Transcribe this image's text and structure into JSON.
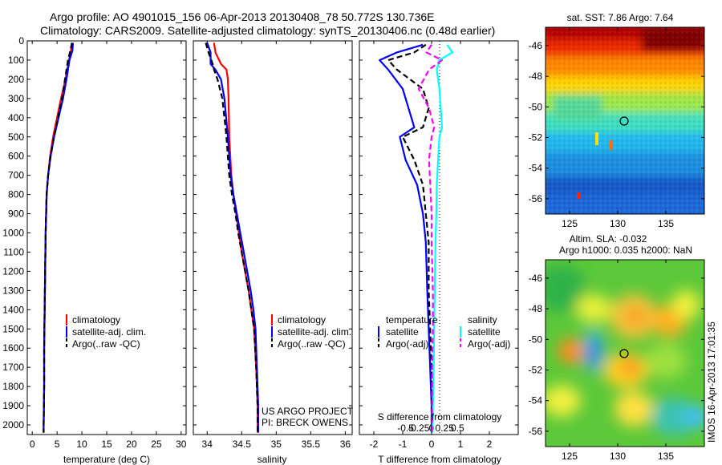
{
  "title": {
    "line1": "Argo profile: AO 4901015_156 06-Apr-2013 20130408_78 50.772S 130.736E",
    "line2": "Climatology: CARS2009. Satellite-adjusted climatology: synTS_20130406.nc (0.48d earlier)"
  },
  "colors": {
    "climatology": "#ff0000",
    "satellite": "#0000ff",
    "argo": "#000000",
    "sal_satellite": "#00ffff",
    "sal_argo": "#ff00ff"
  },
  "panels": {
    "temperature": {
      "xlabel": "temperature (deg C)",
      "legend": [
        "climatology",
        "satellite-adj. clim.",
        "Argo(..raw -QC)"
      ]
    },
    "salinity": {
      "xlabel": "salinity",
      "legend": [
        "climatology",
        "satellite-adj. clim.",
        "Argo(..raw -QC)"
      ],
      "credit1": "US ARGO PROJECT",
      "credit2": "PI: BRECK OWENS"
    },
    "difference": {
      "xlabel": "T difference from climatology",
      "top_label": "S difference from climatology",
      "legend_head_t": "temperature",
      "legend_head_s": "salinity",
      "legend_t": [
        "satellite",
        "Argo(-adj)"
      ],
      "legend_s": [
        "satellite",
        "Argo(-adj)"
      ]
    },
    "sst_map": {
      "title": "sat. SST: 7.86 Argo: 7.64"
    },
    "sla_map": {
      "title1": "Altim. SLA: -0.032",
      "title2": "Argo h1000: 0.035 h2000: NaN"
    },
    "side_text": "IMOS 16-Apr-2013 17:01:35"
  },
  "chart_data": [
    {
      "type": "line",
      "title": "",
      "xlabel": "temperature (deg C)",
      "ylabel": "",
      "xlim": [
        -1,
        31
      ],
      "ylim": [
        2050,
        0
      ],
      "xticks": [
        0,
        5,
        10,
        15,
        20,
        25,
        30
      ],
      "yticks": [
        0,
        100,
        200,
        300,
        400,
        500,
        600,
        700,
        800,
        900,
        1000,
        1100,
        1200,
        1300,
        1400,
        1500,
        1600,
        1700,
        1800,
        1900,
        2000
      ],
      "series": [
        {
          "name": "climatology",
          "color": "#ff0000",
          "dash": "solid",
          "x": [
            8.0,
            7.8,
            7.4,
            6.7,
            5.8,
            5.0,
            4.2,
            3.6,
            3.2,
            2.9,
            2.8,
            2.7,
            2.6,
            2.5,
            2.4,
            2.4,
            2.35,
            2.3,
            2.3
          ],
          "y": [
            10,
            50,
            100,
            200,
            300,
            400,
            500,
            600,
            700,
            800,
            900,
            1000,
            1200,
            1400,
            1600,
            1800,
            1900,
            2000,
            2040
          ]
        },
        {
          "name": "satellite-adj. clim.",
          "color": "#0000ff",
          "dash": "solid",
          "x": [
            8.2,
            8.1,
            7.5,
            6.9,
            6.2,
            5.3,
            4.4,
            3.7,
            3.2,
            2.9,
            2.8,
            2.7,
            2.6,
            2.5,
            2.4,
            2.4,
            2.35,
            2.3,
            2.3
          ],
          "y": [
            10,
            50,
            100,
            200,
            300,
            400,
            500,
            600,
            700,
            800,
            900,
            1000,
            1200,
            1400,
            1600,
            1800,
            1900,
            2000,
            2040
          ]
        },
        {
          "name": "Argo(..raw -QC)",
          "color": "#000000",
          "dash": "dashed",
          "x": [
            8.0,
            7.7,
            7.2,
            6.6,
            6.0,
            5.2,
            4.4,
            3.7,
            3.2,
            2.9,
            2.8,
            2.7,
            2.6,
            2.5,
            2.4,
            2.4,
            2.35,
            2.3,
            2.3
          ],
          "y": [
            10,
            50,
            100,
            200,
            300,
            400,
            500,
            600,
            700,
            800,
            900,
            1000,
            1200,
            1400,
            1600,
            1800,
            1900,
            2000,
            2040
          ]
        }
      ],
      "legend": "lower-left"
    },
    {
      "type": "line",
      "title": "",
      "xlabel": "salinity",
      "ylabel": "",
      "xlim": [
        33.8,
        36.1
      ],
      "ylim": [
        2050,
        0
      ],
      "xticks": [
        34,
        34.5,
        35,
        35.5,
        36
      ],
      "xticklabels": [
        "34",
        "34.5",
        "35",
        "35.5",
        "36"
      ],
      "series": [
        {
          "name": "climatology",
          "color": "#ff0000",
          "dash": "solid",
          "x": [
            34.1,
            34.12,
            34.2,
            34.28,
            34.3,
            34.31,
            34.32,
            34.35,
            34.38,
            34.42,
            34.46,
            34.5,
            34.55,
            34.6,
            34.64,
            34.68,
            34.71,
            34.73,
            34.73
          ],
          "y": [
            10,
            60,
            120,
            150,
            200,
            300,
            500,
            700,
            800,
            900,
            1000,
            1100,
            1200,
            1300,
            1400,
            1500,
            1700,
            1900,
            2040
          ]
        },
        {
          "name": "satellite-adj. clim.",
          "color": "#0000ff",
          "dash": "solid",
          "x": [
            34.0,
            34.05,
            34.05,
            34.12,
            34.2,
            34.25,
            34.3,
            34.34,
            34.38,
            34.43,
            34.48,
            34.53,
            34.58,
            34.63,
            34.67,
            34.7,
            34.72,
            34.74,
            34.74
          ],
          "y": [
            10,
            60,
            120,
            150,
            200,
            300,
            500,
            700,
            800,
            900,
            1000,
            1100,
            1200,
            1300,
            1400,
            1500,
            1700,
            1900,
            2040
          ]
        },
        {
          "name": "Argo(..raw -QC)",
          "color": "#000000",
          "dash": "dashed",
          "x": [
            33.98,
            34.02,
            34.08,
            34.1,
            34.15,
            34.22,
            34.28,
            34.32,
            34.36,
            34.41,
            34.45,
            34.5,
            34.55,
            34.6,
            34.64,
            34.68,
            34.71,
            34.73,
            34.73
          ],
          "y": [
            10,
            60,
            120,
            150,
            200,
            300,
            500,
            700,
            800,
            900,
            1000,
            1100,
            1200,
            1300,
            1400,
            1500,
            1700,
            1900,
            2040
          ]
        }
      ],
      "legend": "lower-left"
    },
    {
      "type": "line",
      "title": "",
      "xlabel": "T difference from climatology",
      "ylabel": "",
      "xlim": [
        -2.5,
        3
      ],
      "ylim": [
        2050,
        0
      ],
      "xticks": [
        -2,
        -1,
        0,
        1,
        2
      ],
      "xticklabels": [
        "-2",
        "-1",
        "0",
        "1",
        "2"
      ],
      "top_axis": {
        "label": "S difference from climatology",
        "ticks": [
          -0.5,
          -0.25,
          0,
          0.25,
          0.5
        ],
        "ticklabels": [
          "-0.5",
          "-0.25",
          "0",
          "0.25",
          "0.5"
        ]
      },
      "series": [
        {
          "name": "satellite",
          "group": "temperature",
          "color": "#0000ff",
          "dash": "solid",
          "x": [
            -0.3,
            -1.2,
            -1.8,
            -1.5,
            -1.0,
            -0.8,
            -0.6,
            -1.1,
            -0.9,
            -0.5,
            -0.3,
            -0.2,
            -0.15,
            -0.1,
            -0.05,
            0.0,
            0.0
          ],
          "y": [
            20,
            60,
            100,
            150,
            250,
            350,
            450,
            500,
            620,
            750,
            900,
            1050,
            1300,
            1500,
            1700,
            1900,
            2040
          ]
        },
        {
          "name": "Argo(-adj)",
          "group": "temperature",
          "color": "#000000",
          "dash": "dashed",
          "x": [
            -0.2,
            -0.6,
            -1.5,
            -1.2,
            -0.3,
            -0.1,
            -0.3,
            -1.0,
            -0.6,
            -0.3,
            -0.2,
            -0.1,
            -0.1,
            -0.05,
            0.0,
            0.0,
            0.0
          ],
          "y": [
            20,
            60,
            100,
            150,
            250,
            350,
            450,
            500,
            620,
            750,
            900,
            1050,
            1300,
            1500,
            1700,
            1900,
            2040
          ]
        },
        {
          "name": "satellite",
          "group": "salinity",
          "color": "#00ffff",
          "dash": "solid",
          "x": [
            0.6,
            0.8,
            0.3,
            0.2,
            0.3,
            0.35,
            0.4,
            0.3,
            0.25,
            0.2,
            0.18,
            0.15,
            0.12,
            0.1,
            0.08,
            0.05,
            0.04
          ],
          "y": [
            20,
            60,
            100,
            150,
            250,
            350,
            450,
            500,
            620,
            750,
            900,
            1050,
            1300,
            1500,
            1700,
            1900,
            2040
          ]
        },
        {
          "name": "Argo(-adj)",
          "group": "salinity",
          "color": "#ff00ff",
          "dash": "dashed",
          "x": [
            0.0,
            -0.2,
            0.4,
            -0.1,
            -0.5,
            -0.1,
            0.1,
            0.0,
            -0.1,
            -0.05,
            0.0,
            0.0,
            0.05,
            0.05,
            0.02,
            0.02,
            0.02
          ],
          "y": [
            20,
            60,
            100,
            150,
            250,
            350,
            450,
            500,
            620,
            750,
            900,
            1050,
            1300,
            1500,
            1700,
            1900,
            2040
          ]
        }
      ],
      "legend": "lower-center"
    },
    {
      "type": "heatmap",
      "title": "sat. SST: 7.86 Argo: 7.64",
      "xlim": [
        122.5,
        139
      ],
      "ylim": [
        -57,
        -44.8
      ],
      "xticks": [
        125,
        130,
        135
      ],
      "yticks": [
        -46,
        -48,
        -50,
        -52,
        -54,
        -56
      ],
      "marker": {
        "lon": 130.736,
        "lat": -50.772
      }
    },
    {
      "type": "heatmap",
      "title": "Altim. SLA: -0.032 / Argo h1000: 0.035 h2000: NaN",
      "xlim": [
        122.5,
        139
      ],
      "ylim": [
        -57,
        -44.8
      ],
      "xticks": [
        125,
        130,
        135
      ],
      "yticks": [
        -46,
        -48,
        -50,
        -52,
        -54,
        -56
      ],
      "marker": {
        "lon": 130.736,
        "lat": -50.772
      }
    }
  ]
}
